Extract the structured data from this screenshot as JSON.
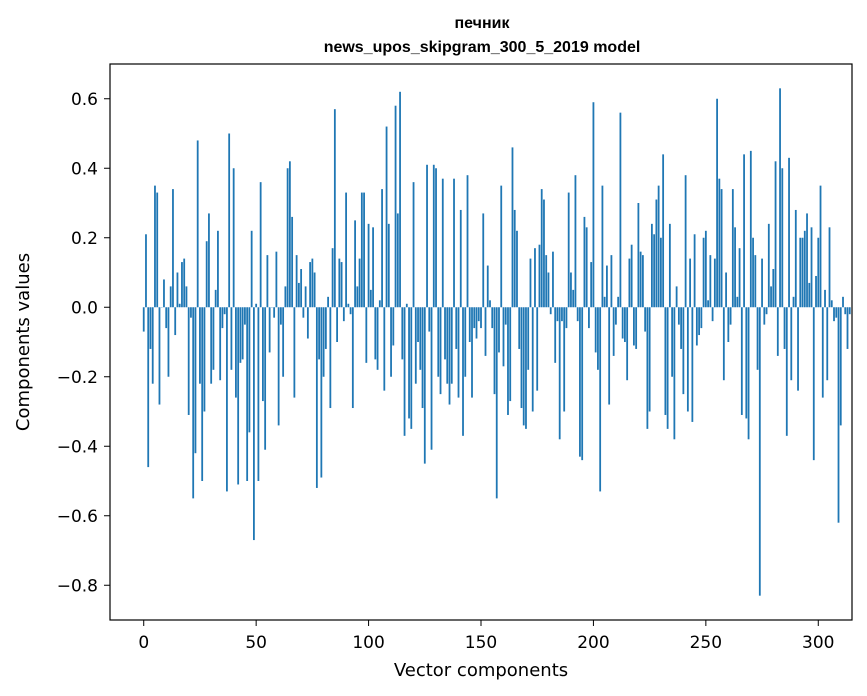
{
  "chart_data": {
    "type": "bar",
    "title": "печник",
    "subtitle": "news_upos_skipgram_300_5_2019 model",
    "xlabel": "Vector components",
    "ylabel": "Components values",
    "xlim": [
      -15,
      315
    ],
    "ylim": [
      -0.9,
      0.7
    ],
    "xticks": [
      0,
      50,
      100,
      150,
      200,
      250,
      300
    ],
    "yticks": [
      -0.8,
      -0.6,
      -0.4,
      -0.2,
      0.0,
      0.2,
      0.4,
      0.6
    ],
    "xtick_labels": [
      "0",
      "50",
      "100",
      "150",
      "200",
      "250",
      "300"
    ],
    "ytick_labels": [
      "−0.8",
      "−0.6",
      "−0.4",
      "−0.2",
      "0.0",
      "0.2",
      "0.4",
      "0.6"
    ],
    "bar_color": "#1f77b4",
    "grid": false,
    "values": [
      -0.07,
      0.21,
      -0.46,
      -0.12,
      -0.22,
      0.35,
      0.33,
      -0.28,
      0.0,
      0.08,
      -0.06,
      -0.2,
      0.06,
      0.34,
      -0.08,
      0.1,
      0.01,
      0.13,
      0.14,
      0.06,
      -0.31,
      -0.03,
      -0.55,
      -0.42,
      0.48,
      -0.22,
      -0.5,
      -0.3,
      0.19,
      0.27,
      -0.22,
      -0.18,
      0.05,
      0.22,
      -0.21,
      -0.06,
      -0.02,
      -0.53,
      0.5,
      -0.18,
      0.4,
      -0.26,
      -0.51,
      -0.16,
      -0.15,
      -0.05,
      -0.5,
      -0.36,
      0.22,
      -0.67,
      0.01,
      -0.5,
      0.36,
      -0.27,
      -0.41,
      0.15,
      -0.13,
      0.0,
      -0.03,
      0.16,
      -0.34,
      -0.05,
      -0.2,
      0.06,
      0.4,
      0.42,
      0.26,
      -0.26,
      0.15,
      0.07,
      0.11,
      -0.03,
      0.06,
      -0.09,
      0.13,
      0.14,
      0.1,
      -0.52,
      -0.15,
      -0.49,
      -0.2,
      -0.12,
      0.03,
      -0.29,
      0.17,
      0.57,
      -0.1,
      0.14,
      0.13,
      -0.04,
      0.33,
      0.01,
      -0.02,
      -0.29,
      0.25,
      0.06,
      0.14,
      0.33,
      0.33,
      -0.16,
      0.24,
      0.05,
      0.23,
      -0.15,
      -0.18,
      0.02,
      0.34,
      -0.24,
      0.52,
      0.24,
      -0.2,
      -0.11,
      0.58,
      0.27,
      0.62,
      -0.15,
      -0.37,
      0.01,
      -0.32,
      -0.35,
      0.36,
      -0.22,
      -0.1,
      -0.18,
      -0.29,
      -0.45,
      0.41,
      -0.07,
      -0.41,
      0.41,
      0.4,
      -0.2,
      -0.25,
      0.37,
      -0.15,
      -0.22,
      -0.28,
      -0.22,
      0.37,
      -0.12,
      -0.26,
      0.28,
      -0.37,
      -0.2,
      0.38,
      -0.1,
      -0.26,
      -0.06,
      -0.09,
      -0.04,
      -0.06,
      0.27,
      -0.14,
      0.12,
      0.02,
      -0.06,
      -0.25,
      -0.55,
      -0.13,
      0.35,
      -0.17,
      -0.05,
      -0.31,
      -0.27,
      0.46,
      0.28,
      0.22,
      -0.12,
      -0.29,
      -0.34,
      -0.35,
      -0.18,
      0.14,
      -0.3,
      0.17,
      -0.24,
      0.18,
      0.34,
      0.31,
      0.15,
      0.1,
      -0.02,
      0.16,
      -0.16,
      -0.04,
      -0.38,
      -0.04,
      -0.3,
      -0.06,
      0.33,
      0.1,
      0.05,
      0.38,
      -0.04,
      -0.43,
      -0.44,
      0.26,
      0.23,
      -0.06,
      0.13,
      0.59,
      -0.13,
      -0.18,
      -0.53,
      0.35,
      0.03,
      0.12,
      -0.28,
      0.15,
      -0.14,
      -0.05,
      0.03,
      0.56,
      -0.09,
      -0.1,
      -0.21,
      0.14,
      0.18,
      -0.11,
      -0.12,
      0.3,
      0.16,
      0.15,
      -0.07,
      -0.35,
      -0.3,
      0.24,
      0.21,
      0.31,
      0.35,
      0.2,
      0.44,
      -0.31,
      -0.35,
      0.24,
      -0.2,
      -0.38,
      0.06,
      -0.05,
      -0.12,
      -0.25,
      0.38,
      -0.3,
      0.14,
      -0.33,
      0.21,
      -0.11,
      -0.08,
      -0.06,
      0.2,
      0.22,
      0.02,
      0.15,
      -0.04,
      0.14,
      0.6,
      0.37,
      0.34,
      -0.21,
      0.1,
      -0.1,
      -0.05,
      0.34,
      0.23,
      0.03,
      0.17,
      -0.31,
      0.44,
      -0.32,
      -0.38,
      0.45,
      0.2,
      0.15,
      -0.18,
      -0.83,
      0.14,
      -0.05,
      -0.02,
      0.24,
      0.06,
      0.11,
      0.42,
      -0.14,
      0.63,
      0.4,
      -0.12,
      -0.37,
      0.43,
      -0.21,
      0.03,
      0.28,
      -0.24,
      0.2,
      0.2,
      0.22,
      0.27,
      0.07,
      0.23,
      -0.44,
      0.09,
      0.2,
      0.35,
      -0.26,
      0.05,
      -0.21,
      0.23,
      0.02,
      -0.04,
      -0.03,
      -0.62,
      -0.34,
      0.03,
      -0.02,
      -0.12,
      -0.02
    ]
  }
}
